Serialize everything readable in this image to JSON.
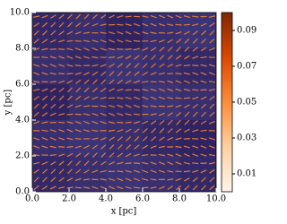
{
  "chart_data": {
    "type": "heatmap",
    "xlabel": "x [pc]",
    "ylabel": "y [pc]",
    "xlim": [
      0,
      10
    ],
    "ylim": [
      0,
      10
    ],
    "xticks": [
      {
        "value": 0,
        "label": "0.0"
      },
      {
        "value": 2,
        "label": "2.0"
      },
      {
        "value": 4,
        "label": "4.0"
      },
      {
        "value": 6,
        "label": "6.0"
      },
      {
        "value": 8,
        "label": "8.0"
      },
      {
        "value": 10,
        "label": "10.0"
      }
    ],
    "yticks": [
      {
        "value": 0,
        "label": "0.0"
      },
      {
        "value": 2,
        "label": "2.0"
      },
      {
        "value": 4,
        "label": "4.0"
      },
      {
        "value": 6,
        "label": "6.0"
      },
      {
        "value": 8,
        "label": "8.0"
      },
      {
        "value": 10,
        "label": "10.0"
      }
    ],
    "z": [
      [
        0.04,
        0.05,
        0.03,
        0.05,
        0.06
      ],
      [
        0.05,
        0.04,
        0.06,
        0.05,
        0.04
      ],
      [
        0.03,
        0.05,
        0.04,
        0.06,
        0.05
      ],
      [
        0.05,
        0.06,
        0.05,
        0.04,
        0.03
      ],
      [
        0.04,
        0.05,
        0.06,
        0.05,
        0.04
      ]
    ],
    "z_colors": [
      "#24124a",
      "#4b4c96"
    ],
    "vector_color": "#e07a3a",
    "clim": [
      0,
      0.1
    ],
    "cticks": [
      0.01,
      0.03,
      0.05,
      0.07,
      0.09
    ],
    "colorbar_colors": [
      "#fff5eb",
      "#fdd0a2",
      "#fd8d3c",
      "#d94801",
      "#7f2704"
    ]
  }
}
